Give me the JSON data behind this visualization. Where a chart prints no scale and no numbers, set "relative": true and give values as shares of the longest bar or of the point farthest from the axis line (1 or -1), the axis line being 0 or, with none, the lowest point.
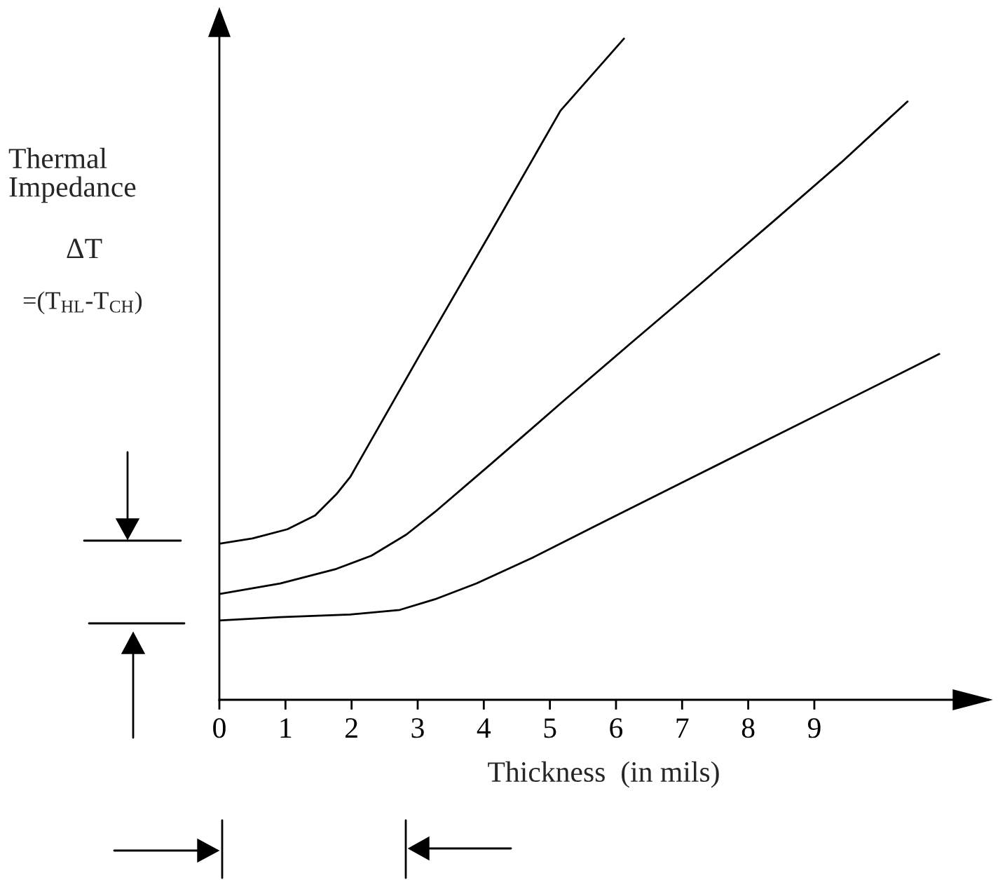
{
  "chart_data": {
    "type": "line",
    "relative": true,
    "xlabel": "Thickness  (in mils)",
    "ylabel": "Thermal\nImpedance",
    "annotations": [
      "ΔT",
      "=(T$_{HL}$-T$_{CH}$)"
    ],
    "xlim": [
      0,
      11.63
    ],
    "xticks": [
      0,
      1,
      2,
      3,
      4,
      5,
      6,
      7,
      8,
      9
    ],
    "grid": false,
    "legend": false,
    "marker": "none",
    "line_style": "solid",
    "series": [
      {
        "color": "#000000",
        "x": [
          0,
          0.5,
          1.03,
          1.45,
          1.77,
          1.98,
          3.04,
          4.1,
          5.16,
          6.12
        ],
        "values": [
          0.236,
          0.244,
          0.258,
          0.279,
          0.311,
          0.337,
          0.523,
          0.706,
          0.891,
          1.0
        ]
      },
      {
        "color": "#000000",
        "x": [
          0,
          0.92,
          1.77,
          2.3,
          2.83,
          3.26,
          4.1,
          5.16,
          6.22,
          7.29,
          8.35,
          9.41,
          10.41
        ],
        "values": [
          0.16,
          0.176,
          0.198,
          0.218,
          0.25,
          0.284,
          0.356,
          0.448,
          0.539,
          0.63,
          0.721,
          0.813,
          0.905
        ]
      },
      {
        "color": "#000000",
        "x": [
          0,
          0.92,
          1.98,
          2.73,
          3.26,
          3.89,
          4.74,
          5.69,
          7.29,
          8.35,
          9.41,
          10.89
        ],
        "values": [
          0.12,
          0.125,
          0.129,
          0.136,
          0.152,
          0.176,
          0.215,
          0.263,
          0.343,
          0.396,
          0.449,
          0.523
        ]
      }
    ]
  }
}
